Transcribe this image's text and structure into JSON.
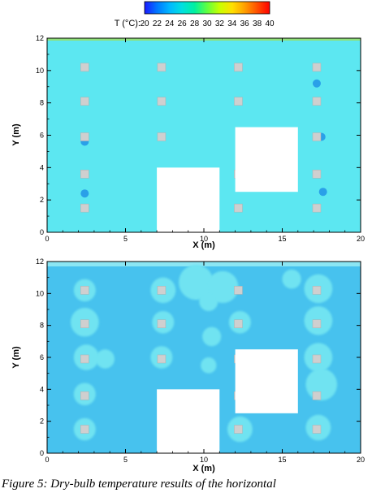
{
  "colorbar": {
    "title": "T (°C):",
    "ticks": [
      "20",
      "22",
      "24",
      "26",
      "28",
      "30",
      "32",
      "34",
      "36",
      "38",
      "40"
    ],
    "min": 20,
    "max": 40,
    "stops": [
      "#1a1aff",
      "#0077ff",
      "#00b7ff",
      "#00e0e0",
      "#00f0a0",
      "#60ff40",
      "#c8ff00",
      "#ffe000",
      "#ffa000",
      "#ff5000",
      "#ff0000"
    ]
  },
  "chart_data": [
    {
      "type": "heatmap",
      "title": "",
      "xlabel": "X (m)",
      "ylabel": "Y (m)",
      "xlim": [
        0,
        20
      ],
      "ylim": [
        0,
        12
      ],
      "xticks": [
        0,
        5,
        10,
        15,
        20
      ],
      "yticks": [
        0,
        2,
        4,
        6,
        8,
        10,
        12
      ],
      "background_temperature_c": 25.5,
      "background_color": "#5ce7f1",
      "plume_color": "#5ff0dc",
      "cold_spot_color": "#2aa0e8",
      "top_band_color": "#8fe07a",
      "obstacles": [
        {
          "x": [
            7,
            11
          ],
          "y": [
            0,
            4
          ]
        },
        {
          "x": [
            12,
            16
          ],
          "y": [
            2.5,
            6.5
          ]
        }
      ],
      "sources": [
        {
          "x": 2.4,
          "y": 10.2
        },
        {
          "x": 7.3,
          "y": 10.2
        },
        {
          "x": 12.2,
          "y": 10.2
        },
        {
          "x": 17.2,
          "y": 10.2
        },
        {
          "x": 2.4,
          "y": 8.1
        },
        {
          "x": 7.3,
          "y": 8.1
        },
        {
          "x": 12.2,
          "y": 8.1
        },
        {
          "x": 17.2,
          "y": 8.1
        },
        {
          "x": 2.4,
          "y": 5.9
        },
        {
          "x": 7.3,
          "y": 5.9
        },
        {
          "x": 17.2,
          "y": 5.9
        },
        {
          "x": 2.4,
          "y": 3.6
        },
        {
          "x": 12.2,
          "y": 3.6
        },
        {
          "x": 17.2,
          "y": 3.6
        },
        {
          "x": 2.4,
          "y": 1.5
        },
        {
          "x": 12.2,
          "y": 1.5
        },
        {
          "x": 17.2,
          "y": 1.5
        }
      ],
      "cold_spots": [
        {
          "x": 2.4,
          "y": 5.6
        },
        {
          "x": 2.4,
          "y": 2.4
        },
        {
          "x": 17.5,
          "y": 5.9
        },
        {
          "x": 17.6,
          "y": 2.5
        },
        {
          "x": 17.2,
          "y": 9.2
        }
      ]
    },
    {
      "type": "heatmap",
      "title": "",
      "xlabel": "X (m)",
      "ylabel": "Y (m)",
      "xlim": [
        0,
        20
      ],
      "ylim": [
        0,
        12
      ],
      "xticks": [
        0,
        5,
        10,
        15,
        20
      ],
      "yticks": [
        0,
        2,
        4,
        6,
        8,
        10,
        12
      ],
      "background_temperature_c": 24.5,
      "background_color": "#47c2ee",
      "plume_color": "#6fe3f1",
      "top_band_color": "#8be6f3",
      "obstacles": [
        {
          "x": [
            7,
            11
          ],
          "y": [
            0,
            4
          ]
        },
        {
          "x": [
            12,
            16
          ],
          "y": [
            2.5,
            6.5
          ]
        }
      ],
      "sources": [
        {
          "x": 2.4,
          "y": 10.2
        },
        {
          "x": 7.3,
          "y": 10.2
        },
        {
          "x": 12.2,
          "y": 10.2
        },
        {
          "x": 17.2,
          "y": 10.2
        },
        {
          "x": 2.4,
          "y": 8.1
        },
        {
          "x": 7.3,
          "y": 8.1
        },
        {
          "x": 12.2,
          "y": 8.1
        },
        {
          "x": 17.2,
          "y": 8.1
        },
        {
          "x": 2.4,
          "y": 5.9
        },
        {
          "x": 7.3,
          "y": 5.9
        },
        {
          "x": 12.2,
          "y": 5.9
        },
        {
          "x": 17.2,
          "y": 5.9
        },
        {
          "x": 2.4,
          "y": 3.6
        },
        {
          "x": 12.2,
          "y": 3.6
        },
        {
          "x": 17.2,
          "y": 3.6
        },
        {
          "x": 2.4,
          "y": 1.5
        },
        {
          "x": 12.2,
          "y": 1.5
        },
        {
          "x": 17.2,
          "y": 1.5
        }
      ],
      "plumes": [
        {
          "x": 2.4,
          "y": 10.2,
          "r": 0.7
        },
        {
          "x": 2.4,
          "y": 8.2,
          "r": 0.9
        },
        {
          "x": 2.5,
          "y": 6.0,
          "r": 0.8
        },
        {
          "x": 3.7,
          "y": 5.9,
          "r": 0.6
        },
        {
          "x": 2.4,
          "y": 3.7,
          "r": 0.7
        },
        {
          "x": 2.4,
          "y": 1.5,
          "r": 0.7
        },
        {
          "x": 7.4,
          "y": 10.2,
          "r": 0.8
        },
        {
          "x": 7.4,
          "y": 8.2,
          "r": 0.7
        },
        {
          "x": 7.3,
          "y": 6.0,
          "r": 0.7
        },
        {
          "x": 9.5,
          "y": 10.7,
          "r": 1.1
        },
        {
          "x": 11.2,
          "y": 10.4,
          "r": 1.0
        },
        {
          "x": 10.3,
          "y": 9.5,
          "r": 0.6
        },
        {
          "x": 10.5,
          "y": 7.3,
          "r": 0.6
        },
        {
          "x": 10.3,
          "y": 5.5,
          "r": 0.5
        },
        {
          "x": 12.3,
          "y": 8.2,
          "r": 0.7
        },
        {
          "x": 12.3,
          "y": 1.5,
          "r": 0.8
        },
        {
          "x": 17.3,
          "y": 10.3,
          "r": 0.9
        },
        {
          "x": 17.3,
          "y": 8.3,
          "r": 0.9
        },
        {
          "x": 17.3,
          "y": 6.0,
          "r": 0.9
        },
        {
          "x": 17.5,
          "y": 4.3,
          "r": 1.0
        },
        {
          "x": 17.3,
          "y": 1.6,
          "r": 0.8
        },
        {
          "x": 15.6,
          "y": 10.9,
          "r": 0.6
        }
      ]
    }
  ],
  "caption": "Figure 5: Dry-bulb temperature results of the horizontal"
}
